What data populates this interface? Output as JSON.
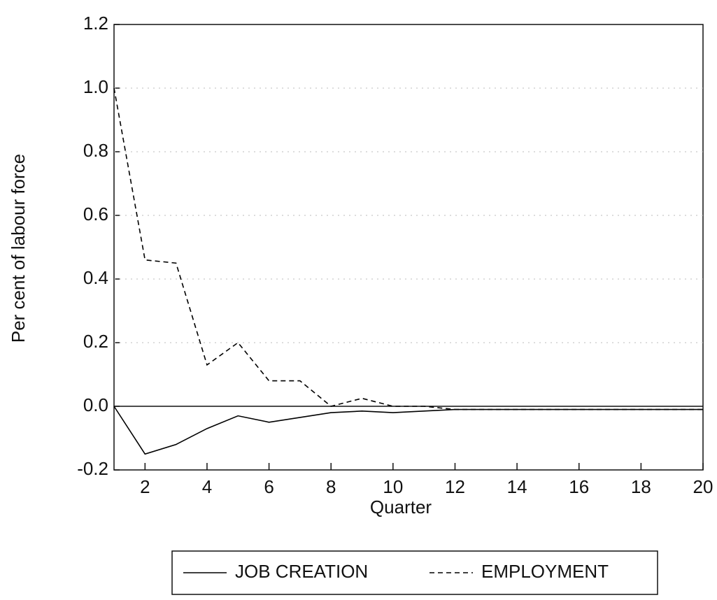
{
  "chart_data": {
    "type": "line",
    "y_label": "Per cent of labour force",
    "x_label": "Quarter",
    "x": [
      1,
      2,
      3,
      4,
      5,
      6,
      7,
      8,
      9,
      10,
      11,
      12,
      13,
      14,
      15,
      16,
      17,
      18,
      19,
      20
    ],
    "series": [
      {
        "name": "JOB CREATION",
        "color": "#000000",
        "dash": "solid",
        "values": [
          0.0,
          -0.15,
          -0.12,
          -0.07,
          -0.03,
          -0.05,
          -0.035,
          -0.02,
          -0.015,
          -0.02,
          -0.015,
          -0.01,
          -0.01,
          -0.01,
          -0.01,
          -0.01,
          -0.01,
          -0.01,
          -0.01,
          -0.01
        ]
      },
      {
        "name": "EMPLOYMENT",
        "color": "#000000",
        "dash": "dashed",
        "values": [
          1.0,
          0.46,
          0.45,
          0.13,
          0.2,
          0.08,
          0.08,
          0.0,
          0.025,
          0.0,
          0.0,
          -0.01,
          -0.01,
          -0.01,
          -0.01,
          -0.01,
          -0.01,
          -0.01,
          -0.01,
          -0.01
        ]
      }
    ],
    "xlim": [
      1,
      20
    ],
    "xticks": [
      2,
      4,
      6,
      8,
      10,
      12,
      14,
      16,
      18,
      20
    ],
    "ylim": [
      -0.2,
      1.2
    ],
    "yticks": [
      -0.2,
      {
        "value": 0,
        "label": "0.0"
      },
      0.2,
      0.4,
      0.6,
      0.8,
      {
        "value": 1,
        "label": "1.0"
      },
      1.2
    ],
    "grid": true,
    "legend": "bottom"
  }
}
